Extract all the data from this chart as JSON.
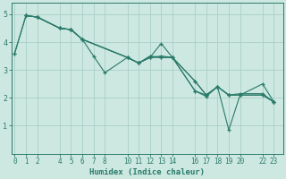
{
  "title": "",
  "xlabel": "Humidex (Indice chaleur)",
  "background_color": "#cce8e0",
  "grid_color": "#aacfc8",
  "line_color": "#2a7a6a",
  "series1": [
    [
      0,
      3.6
    ],
    [
      1,
      4.95
    ],
    [
      2,
      4.9
    ],
    [
      4,
      4.5
    ],
    [
      5,
      4.45
    ],
    [
      6,
      4.1
    ],
    [
      7,
      3.5
    ],
    [
      8,
      2.9
    ],
    [
      10,
      3.45
    ],
    [
      11,
      3.25
    ],
    [
      12,
      3.45
    ],
    [
      13,
      3.95
    ],
    [
      14,
      3.45
    ],
    [
      16,
      2.25
    ],
    [
      17,
      2.05
    ],
    [
      18,
      2.4
    ],
    [
      19,
      0.85
    ],
    [
      20,
      2.1
    ],
    [
      22,
      2.5
    ],
    [
      23,
      1.85
    ]
  ],
  "series2": [
    [
      0,
      3.6
    ],
    [
      1,
      4.95
    ],
    [
      2,
      4.9
    ],
    [
      4,
      4.5
    ],
    [
      5,
      4.45
    ],
    [
      6,
      4.1
    ],
    [
      10,
      3.45
    ],
    [
      11,
      3.25
    ],
    [
      12,
      3.45
    ],
    [
      13,
      3.5
    ],
    [
      14,
      3.45
    ],
    [
      16,
      2.25
    ],
    [
      17,
      2.1
    ],
    [
      18,
      2.4
    ],
    [
      19,
      2.1
    ],
    [
      20,
      2.1
    ],
    [
      22,
      2.1
    ],
    [
      23,
      1.85
    ]
  ],
  "series3": [
    [
      1,
      4.95
    ],
    [
      2,
      4.9
    ],
    [
      4,
      4.5
    ],
    [
      5,
      4.45
    ],
    [
      6,
      4.1
    ],
    [
      10,
      3.45
    ],
    [
      11,
      3.25
    ],
    [
      12,
      3.45
    ],
    [
      13,
      3.45
    ],
    [
      14,
      3.45
    ],
    [
      16,
      2.6
    ],
    [
      17,
      2.1
    ],
    [
      18,
      2.4
    ],
    [
      19,
      2.1
    ],
    [
      20,
      2.1
    ],
    [
      22,
      2.1
    ],
    [
      23,
      1.85
    ]
  ],
  "series4": [
    [
      1,
      4.95
    ],
    [
      2,
      4.9
    ],
    [
      4,
      4.5
    ],
    [
      5,
      4.45
    ],
    [
      6,
      4.1
    ],
    [
      10,
      3.45
    ],
    [
      11,
      3.25
    ],
    [
      12,
      3.5
    ],
    [
      13,
      3.45
    ],
    [
      14,
      3.45
    ],
    [
      16,
      2.6
    ],
    [
      17,
      2.1
    ],
    [
      18,
      2.4
    ],
    [
      19,
      2.1
    ],
    [
      20,
      2.15
    ],
    [
      22,
      2.15
    ],
    [
      23,
      1.85
    ]
  ],
  "xticks": [
    0,
    1,
    2,
    4,
    5,
    6,
    7,
    8,
    10,
    11,
    12,
    13,
    14,
    16,
    17,
    18,
    19,
    20,
    22,
    23
  ],
  "xlim": [
    -0.3,
    23.8
  ],
  "ylim": [
    0,
    5.4
  ],
  "yticks": [
    1,
    2,
    3,
    4,
    5
  ],
  "linewidth": 0.8,
  "markersize": 3,
  "tick_fontsize": 5.5,
  "xlabel_fontsize": 6.5
}
